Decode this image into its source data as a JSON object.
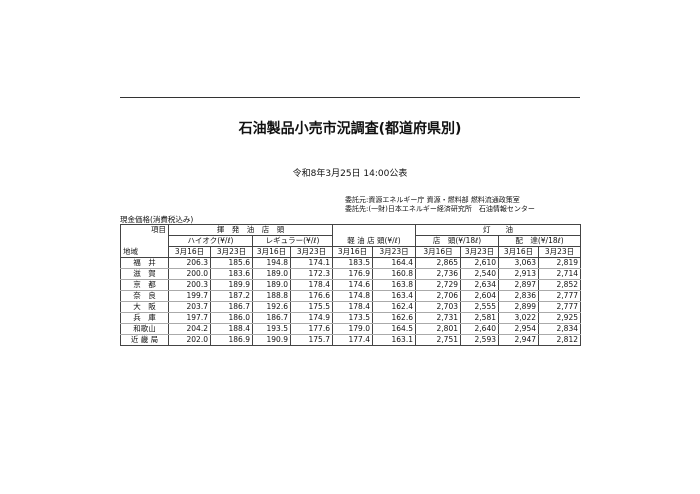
{
  "title": "石油製品小売市況調査(都道府県別)",
  "date": "令和8年3月25日 14:00公表",
  "commissioner": "委託元:資源エネルギー庁 資源・燃料部 燃料流通政策室",
  "contractor": "委託先:(一財)日本エネルギー経済研究所　石油情報センター",
  "caption": "現金価格(消費税込み)",
  "table": {
    "item_label": "項目",
    "region_label": "地域",
    "gasoline_group": "揮　発　油　店　頭",
    "kerosene_group": "灯　　油",
    "highoctane": "ハイオク(¥/ℓ)",
    "regular": "レギュラー(¥/ℓ)",
    "diesel": "軽 油 店 頭(¥/ℓ)",
    "kerosene_store": "店　頭(¥/18ℓ)",
    "kerosene_delivery": "配　達(¥/18ℓ)",
    "dates": [
      "3月16日",
      "3月23日"
    ],
    "rows": [
      {
        "region": "福　井",
        "values": [
          "206.3",
          "185.6",
          "194.8",
          "174.1",
          "183.5",
          "164.4",
          "2,865",
          "2,610",
          "3,063",
          "2,819"
        ]
      },
      {
        "region": "滋　賀",
        "values": [
          "200.0",
          "183.6",
          "189.0",
          "172.3",
          "176.9",
          "160.8",
          "2,736",
          "2,540",
          "2,913",
          "2,714"
        ]
      },
      {
        "region": "京　都",
        "values": [
          "200.3",
          "189.9",
          "189.0",
          "178.4",
          "174.6",
          "163.8",
          "2,729",
          "2,634",
          "2,897",
          "2,852"
        ]
      },
      {
        "region": "奈　良",
        "values": [
          "199.7",
          "187.2",
          "188.8",
          "176.6",
          "174.8",
          "163.4",
          "2,706",
          "2,604",
          "2,836",
          "2,777"
        ]
      },
      {
        "region": "大　阪",
        "values": [
          "203.7",
          "186.7",
          "192.6",
          "175.5",
          "178.4",
          "162.4",
          "2,703",
          "2,555",
          "2,899",
          "2,777"
        ]
      },
      {
        "region": "兵　庫",
        "values": [
          "197.7",
          "186.0",
          "186.7",
          "174.9",
          "173.5",
          "162.6",
          "2,731",
          "2,581",
          "3,022",
          "2,925"
        ]
      },
      {
        "region": "和歌山",
        "values": [
          "204.2",
          "188.4",
          "193.5",
          "177.6",
          "179.0",
          "164.5",
          "2,801",
          "2,640",
          "2,954",
          "2,834"
        ]
      }
    ],
    "total": {
      "region": "近 畿 局",
      "values": [
        "202.0",
        "186.9",
        "190.9",
        "175.7",
        "177.4",
        "163.1",
        "2,751",
        "2,593",
        "2,947",
        "2,812"
      ]
    }
  }
}
